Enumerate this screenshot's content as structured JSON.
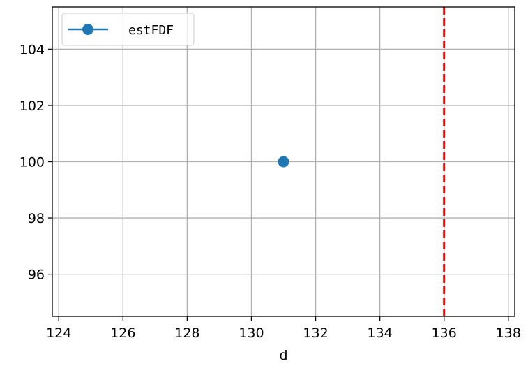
{
  "chart_data": {
    "type": "line",
    "title": "",
    "xlabel": "d",
    "ylabel": "",
    "xlim": [
      123.8,
      138.2
    ],
    "ylim": [
      94.5,
      105.5
    ],
    "xticks": [
      124,
      126,
      128,
      130,
      132,
      134,
      136,
      138
    ],
    "yticks": [
      96,
      98,
      100,
      102,
      104
    ],
    "grid": true,
    "legend": {
      "placement": "top-left",
      "entries": [
        "estFDF"
      ]
    },
    "series": [
      {
        "name": "estFDF",
        "color": "#1f77b4",
        "marker": "circle",
        "points": [
          {
            "x": 131,
            "y": 100
          }
        ]
      }
    ],
    "vlines": [
      {
        "x": 136,
        "color": "#ff0000",
        "style": "dashed"
      }
    ]
  }
}
